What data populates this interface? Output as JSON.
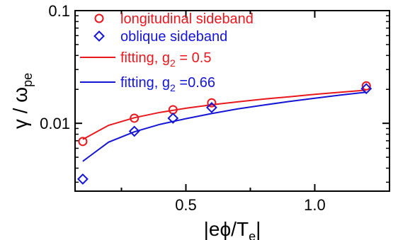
{
  "chart_data": {
    "type": "scatter",
    "xlabel": "|eϕ/T",
    "xlabel_sub": "e",
    "xlabel_suffix": "|",
    "ylabel": "γ / ω",
    "ylabel_sub": "pe",
    "x_scale": "linear",
    "y_scale": "log",
    "xlim": [
      0.07,
      1.29
    ],
    "ylim": [
      0.0025,
      0.1
    ],
    "x_ticks": [
      {
        "value": 0.5,
        "label": "0.5"
      },
      {
        "value": 1.0,
        "label": "1.0"
      }
    ],
    "x_minor_ticks": [
      0.25,
      0.75
    ],
    "y_ticks": [
      {
        "value": 0.01,
        "label": "0.01"
      },
      {
        "value": 0.1,
        "label": "0.1"
      }
    ],
    "grid": false,
    "legend_position": "top-left",
    "series": [
      {
        "name": "longitudinal sideband",
        "kind": "scatter",
        "marker": "circle",
        "color": "#e8181e",
        "x": [
          0.1,
          0.3,
          0.45,
          0.6,
          1.2
        ],
        "y": [
          0.0069,
          0.0111,
          0.0132,
          0.0152,
          0.0215
        ]
      },
      {
        "name": "oblique sideband",
        "kind": "scatter",
        "marker": "diamond",
        "color": "#1515d6",
        "x": [
          0.1,
          0.3,
          0.45,
          0.6,
          1.2
        ],
        "y": [
          0.0032,
          0.0085,
          0.0111,
          0.0138,
          0.0203
        ]
      },
      {
        "name": "fitting,  g",
        "name_sub": "2",
        "name_suffix": " = 0.5",
        "kind": "line",
        "color": "#e8181e",
        "x": [
          0.1,
          0.2,
          0.3,
          0.4,
          0.5,
          0.6,
          0.7,
          0.8,
          0.9,
          1.0,
          1.1,
          1.2
        ],
        "y": [
          0.0072,
          0.0096,
          0.0112,
          0.0125,
          0.0136,
          0.0146,
          0.0155,
          0.0164,
          0.0172,
          0.0181,
          0.0189,
          0.0197
        ]
      },
      {
        "name": "fitting,  g",
        "name_sub": "2",
        "name_suffix": " =0.66",
        "kind": "line",
        "color": "#1515d6",
        "x": [
          0.1,
          0.2,
          0.3,
          0.4,
          0.5,
          0.6,
          0.7,
          0.8,
          0.9,
          1.0,
          1.1,
          1.2
        ],
        "y": [
          0.0046,
          0.0068,
          0.0084,
          0.0098,
          0.011,
          0.0122,
          0.0134,
          0.0145,
          0.0156,
          0.0167,
          0.0178,
          0.0189
        ]
      }
    ]
  }
}
